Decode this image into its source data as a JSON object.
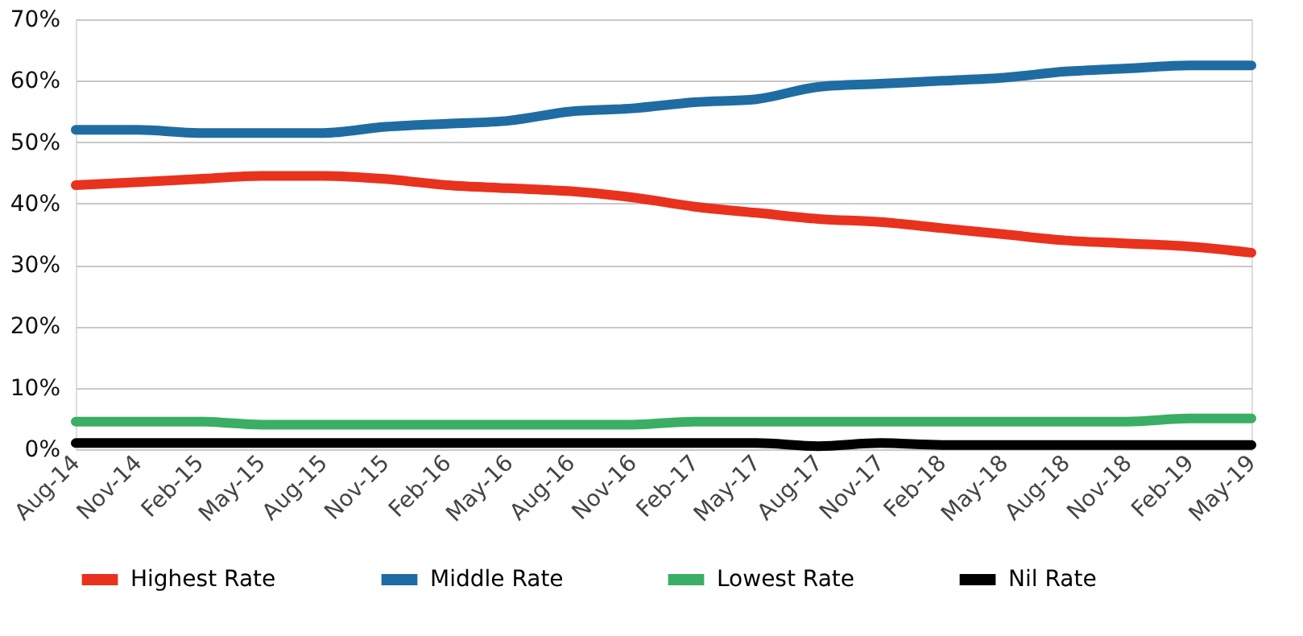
{
  "chart_data": {
    "type": "line",
    "categories": [
      "Aug-14",
      "Nov-14",
      "Feb-15",
      "May-15",
      "Aug-15",
      "Nov-15",
      "Feb-16",
      "May-16",
      "Aug-16",
      "Nov-16",
      "Feb-17",
      "May-17",
      "Aug-17",
      "Nov-17",
      "Feb-18",
      "May-18",
      "Aug-18",
      "Nov-18",
      "Feb-19",
      "May-19"
    ],
    "series": [
      {
        "name": "Highest Rate",
        "color": "#e8321e",
        "values": [
          43,
          43.5,
          44,
          44.5,
          44.5,
          44,
          43,
          42.5,
          42,
          41,
          39.5,
          38.5,
          37.5,
          37,
          36,
          35,
          34,
          33.5,
          33,
          32
        ]
      },
      {
        "name": "Middle Rate",
        "color": "#1f6ca3",
        "values": [
          52,
          52,
          51.5,
          51.5,
          51.5,
          52.5,
          53,
          53.5,
          55,
          55.5,
          56.5,
          57,
          59,
          59.5,
          60,
          60.5,
          61.5,
          62,
          62.5,
          62.5
        ]
      },
      {
        "name": "Lowest Rate",
        "color": "#3aae64",
        "values": [
          4.5,
          4.5,
          4.5,
          4,
          4,
          4,
          4,
          4,
          4,
          4,
          4.5,
          4.5,
          4.5,
          4.5,
          4.5,
          4.5,
          4.5,
          4.5,
          5,
          5
        ]
      },
      {
        "name": "Nil Rate",
        "color": "#000000",
        "values": [
          1,
          1,
          1,
          1,
          1,
          1,
          1,
          1,
          1,
          1,
          1,
          1,
          0.5,
          1,
          0.7,
          0.7,
          0.7,
          0.7,
          0.7,
          0.7
        ]
      }
    ],
    "ylim": [
      0,
      70
    ],
    "yticks": [
      {
        "value": 0,
        "label": "0%"
      },
      {
        "value": 10,
        "label": "10%"
      },
      {
        "value": 20,
        "label": "20%"
      },
      {
        "value": 30,
        "label": "30%"
      },
      {
        "value": 40,
        "label": "40%"
      },
      {
        "value": 50,
        "label": "50%"
      },
      {
        "value": 60,
        "label": "60%"
      },
      {
        "value": 70,
        "label": "70%"
      }
    ],
    "grid": "y",
    "legend": "bottom",
    "marker": "none",
    "line_style": "solid"
  }
}
